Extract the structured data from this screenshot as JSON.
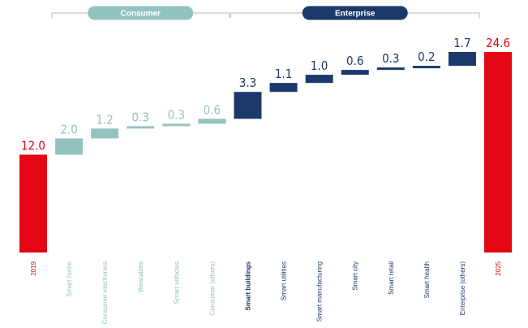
{
  "chart_data": {
    "type": "bar",
    "subtype": "waterfall",
    "title": "",
    "xlabel": "",
    "ylabel": "",
    "categories": [
      "2019",
      "Smart home",
      "Consumer electronics",
      "Wearables",
      "Smart vehicles",
      "Consumer (others)",
      "Smart buildings",
      "Smart utilities",
      "Smart manufacturing",
      "Smart city",
      "Smart retail",
      "Smart health",
      "Enterprise (others)",
      "2025"
    ],
    "values": [
      12.0,
      2.0,
      1.2,
      0.3,
      0.3,
      0.6,
      3.3,
      1.1,
      1.0,
      0.6,
      0.3,
      0.2,
      1.7,
      24.6
    ],
    "value_labels": [
      "12.0",
      "2.0",
      "1.2",
      "0.3",
      "0.3",
      "0.6",
      "3.3",
      "1.1",
      "1.0",
      "0.6",
      "0.3",
      "0.2",
      "1.7",
      "24.6"
    ],
    "kinds": [
      "total",
      "consumer",
      "consumer",
      "consumer",
      "consumer",
      "consumer",
      "enterprise",
      "enterprise",
      "enterprise",
      "enterprise",
      "enterprise",
      "enterprise",
      "enterprise",
      "total"
    ],
    "ylim": [
      0,
      24.6
    ],
    "grid": false,
    "legend": "none",
    "groups": [
      {
        "label": "Consumer",
        "from": 1,
        "to": 5,
        "color": "#93c3c0"
      },
      {
        "label": "Enterprise",
        "from": 6,
        "to": 12,
        "color": "#1b3a6b"
      }
    ],
    "colors": {
      "total": "#e30613",
      "consumer": "#93c3c0",
      "enterprise": "#1b3a6b",
      "bracket": "#b9b9b9"
    }
  }
}
